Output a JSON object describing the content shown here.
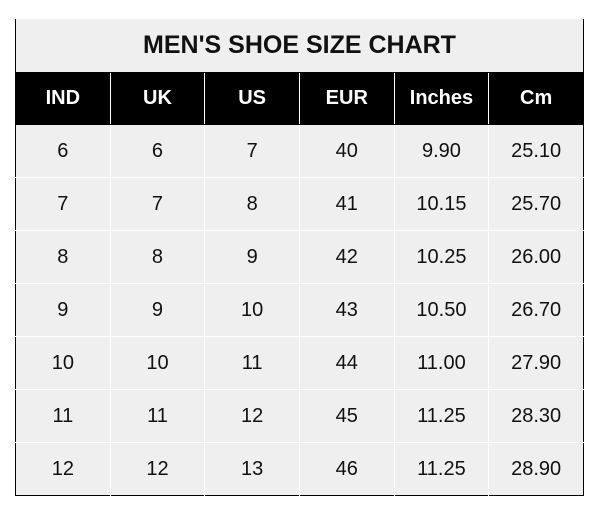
{
  "chart_data": {
    "type": "table",
    "title": "MEN'S SHOE SIZE CHART",
    "columns": [
      "IND",
      "UK",
      "US",
      "EUR",
      "Inches",
      "Cm"
    ],
    "rows": [
      [
        "6",
        "6",
        "7",
        "40",
        "9.90",
        "25.10"
      ],
      [
        "7",
        "7",
        "8",
        "41",
        "10.15",
        "25.70"
      ],
      [
        "8",
        "8",
        "9",
        "42",
        "10.25",
        "26.00"
      ],
      [
        "9",
        "9",
        "10",
        "43",
        "10.50",
        "26.70"
      ],
      [
        "10",
        "10",
        "11",
        "44",
        "11.00",
        "27.90"
      ],
      [
        "11",
        "11",
        "12",
        "45",
        "11.25",
        "28.30"
      ],
      [
        "12",
        "12",
        "13",
        "46",
        "11.25",
        "28.90"
      ]
    ]
  }
}
